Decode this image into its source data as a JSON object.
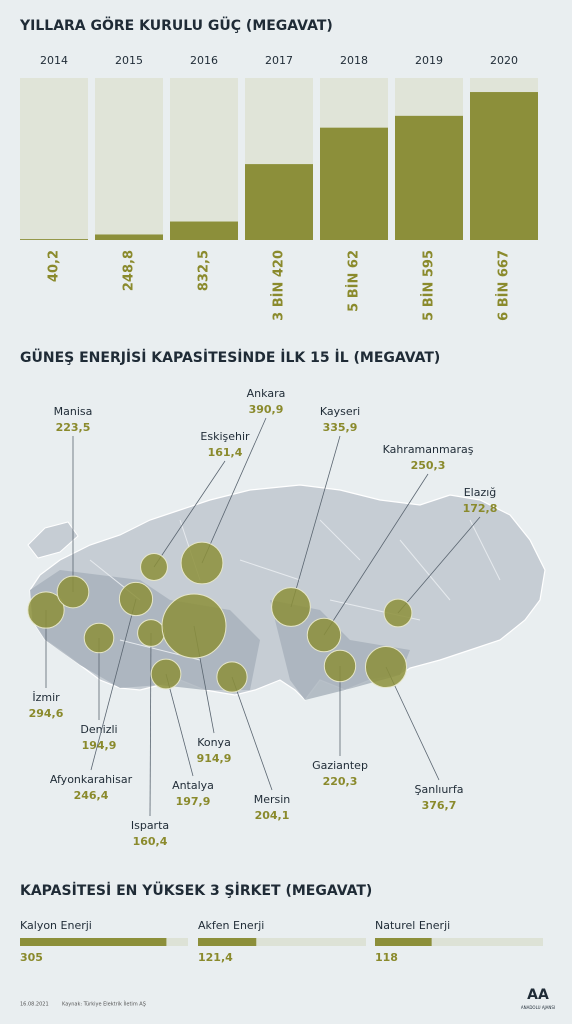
{
  "chart_data": [
    {
      "type": "bar",
      "title": "YILLARA GÖRE KURULU GÜÇ (MEGAVAT)",
      "categories": [
        "2014",
        "2015",
        "2016",
        "2017",
        "2018",
        "2019",
        "2020"
      ],
      "values": [
        40.2,
        248.8,
        832.5,
        3420,
        5062,
        5595,
        6667
      ],
      "value_labels": [
        "40,2",
        "248,8",
        "832,5",
        "3 BİN 420",
        "5 BİN 62",
        "5 BİN 595",
        "6 BİN 667"
      ],
      "ylim": [
        0,
        7300
      ],
      "color": "#8c8f3a",
      "background_color": "#e0e4d8"
    },
    {
      "type": "bubble",
      "title": "GÜNEŞ ENERJİSİ KAPASİTESİNDE İLK 15 İL (MEGAVAT)",
      "categories": [
        "İzmir",
        "Manisa",
        "Eskişehir",
        "Ankara",
        "Kayseri",
        "Kahramanmaraş",
        "Elazığ",
        "Denizli",
        "Afyonkarahisar",
        "Isparta",
        "Antalya",
        "Konya",
        "Mersin",
        "Gaziantep",
        "Şanlıurfa"
      ],
      "values": [
        294.6,
        223.5,
        161.4,
        390.9,
        335.9,
        250.3,
        172.8,
        194.9,
        246.4,
        160.4,
        197.9,
        914.9,
        204.1,
        220.3,
        376.7
      ],
      "value_labels": [
        "294,6",
        "223,5",
        "161,4",
        "390,9",
        "335,9",
        "250,3",
        "172,8",
        "194,9",
        "246,4",
        "160,4",
        "197,9",
        "914,9",
        "204,1",
        "220,3",
        "376,7"
      ],
      "color": "#8c8f3a"
    },
    {
      "type": "hbar",
      "title": "KAPASİTESİ EN YÜKSEK 3 ŞİRKET (MEGAVAT)",
      "categories": [
        "Kalyon Enerji",
        "Akfen Enerji",
        "Naturel Enerji"
      ],
      "values": [
        305,
        121.4,
        118
      ],
      "value_labels": [
        "305",
        "121,4",
        "118"
      ],
      "xlim": [
        0,
        350
      ],
      "color": "#8c8f3a",
      "background_color": "#dde2d6"
    }
  ],
  "footer": {
    "date": "16.08.2021",
    "source": "Kaynak: Türkiye Elektrik İletim AŞ",
    "logo": "AA",
    "agency": "ANADOLU AJANSI"
  }
}
